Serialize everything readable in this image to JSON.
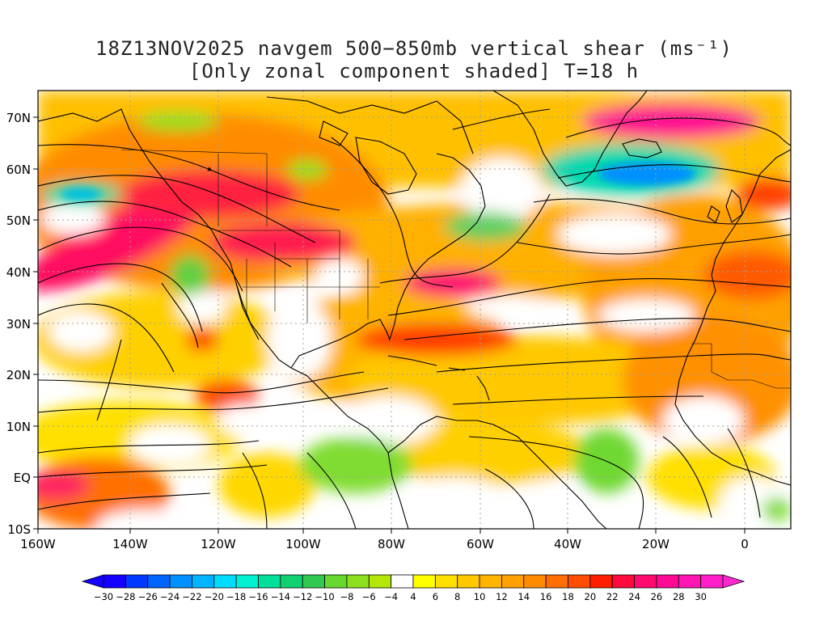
{
  "title": {
    "line1": "18Z13NOV2025 navgem 500−850mb vertical shear (ms⁻¹)",
    "line2": "[Only zonal component shaded] T=18 h"
  },
  "axes": {
    "lat_labels": [
      "70N",
      "60N",
      "50N",
      "40N",
      "30N",
      "20N",
      "10N",
      "EQ",
      "10S"
    ],
    "lon_labels": [
      "160W",
      "140W",
      "120W",
      "100W",
      "80W",
      "60W",
      "40W",
      "20W",
      "0"
    ]
  },
  "colorbar": {
    "labels": [
      "−30",
      "−28",
      "−26",
      "−24",
      "−22",
      "−20",
      "−18",
      "−16",
      "−14",
      "−12",
      "−10",
      "−8",
      "−6",
      "−4",
      "4",
      "6",
      "8",
      "10",
      "12",
      "14",
      "16",
      "18",
      "20",
      "22",
      "24",
      "26",
      "28",
      "30"
    ],
    "colors": [
      "#1400ff",
      "#0038ff",
      "#0064ff",
      "#0090ff",
      "#00b4ff",
      "#00dcff",
      "#00f0d0",
      "#00e09a",
      "#10d070",
      "#30c850",
      "#66d830",
      "#8ce020",
      "#b4e60a",
      "#ffffff",
      "#ffff00",
      "#ffe000",
      "#ffc800",
      "#ffb400",
      "#ffa000",
      "#ff8c00",
      "#ff6e00",
      "#ff4c00",
      "#ff1e00",
      "#ff0a3c",
      "#ff0a6e",
      "#ff0a96",
      "#ff14b4",
      "#ff1ec8"
    ],
    "below_color": "#1400ff",
    "above_color": "#ff28d0"
  },
  "colors": {
    "land_outline": "#000000",
    "grid": "#a0a0a0"
  }
}
